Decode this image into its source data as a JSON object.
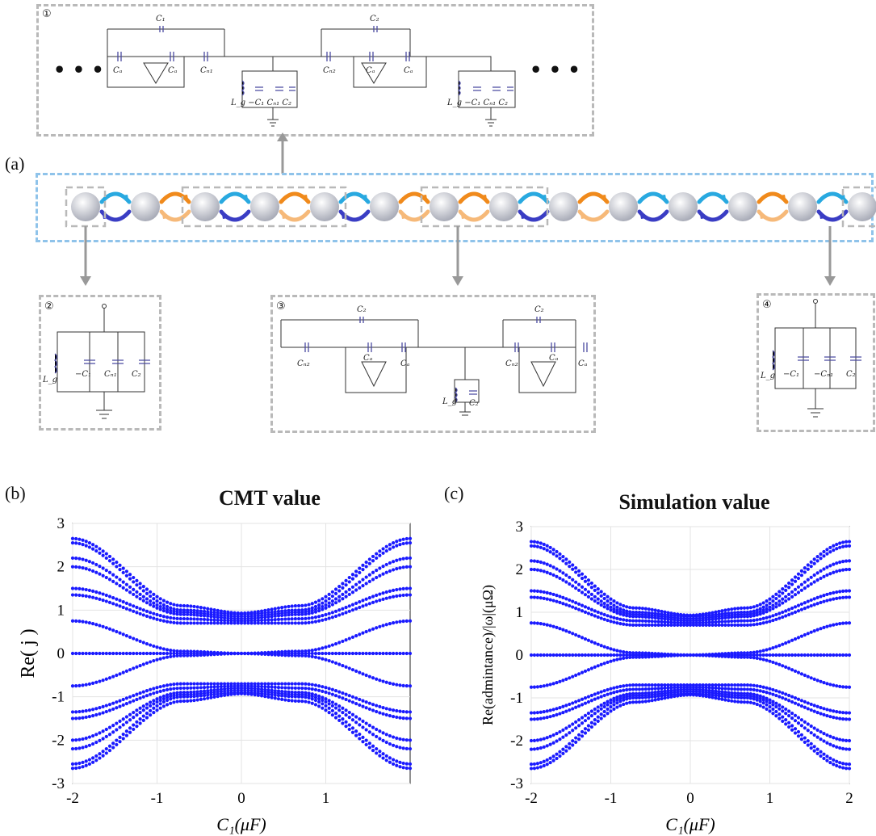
{
  "figure": {
    "panel_a_label": "(a)",
    "panel_b_label": "(b)",
    "panel_c_label": "(c)",
    "insets": {
      "inset1": {
        "number": "①",
        "ellipsis": "• • •"
      },
      "inset2": {
        "number": "②"
      },
      "inset3": {
        "number": "③"
      },
      "inset4": {
        "number": "④"
      }
    },
    "components": {
      "C1": "C₁",
      "C2": "C₂",
      "Ca": "Cₐ",
      "Cn1": "Cₙ₁",
      "Cn2": "Cₙ₂",
      "negC1": "−C₁",
      "negCn1": "−Cₙ₁",
      "Lg": "L_g"
    },
    "chain": {
      "node_color": "#d9dbe2",
      "hop_colors": {
        "cyan": "#29a9e0",
        "blue": "#3a3dc4",
        "orange": "#f08a1c",
        "peach": "#f6b979"
      },
      "box_color": "#8fc3ea"
    }
  },
  "chart_data": [
    {
      "type": "scatter",
      "title": "CMT value",
      "xlabel": "C₁(μF)",
      "ylabel": "Re( j )",
      "xlim": [
        -2,
        2
      ],
      "ylim": [
        -3,
        3
      ],
      "xticks": [
        "-2",
        "-1",
        "0",
        "1"
      ],
      "xtick_values": [
        -2,
        -1,
        0,
        1
      ],
      "yticks": [
        "3",
        "2",
        "1",
        "0",
        "-1",
        "-2",
        "-3"
      ],
      "ytick_values": [
        3,
        2,
        1,
        0,
        -1,
        -2,
        -3
      ],
      "grid": true,
      "marker_color": "#1a1aff",
      "bands": [
        {
          "x": [
            -2,
            -0.7,
            0,
            0.7,
            2
          ],
          "y": [
            2.65,
            1.1,
            0.93,
            1.1,
            2.65
          ]
        },
        {
          "x": [
            -2,
            -0.7,
            0,
            0.7,
            2
          ],
          "y": [
            2.55,
            1.0,
            0.9,
            1.0,
            2.55
          ]
        },
        {
          "x": [
            -2,
            -0.7,
            0,
            0.7,
            2
          ],
          "y": [
            2.2,
            0.95,
            0.85,
            0.95,
            2.2
          ]
        },
        {
          "x": [
            -2,
            -0.7,
            0,
            0.7,
            2
          ],
          "y": [
            2.0,
            0.9,
            0.8,
            0.9,
            2.0
          ]
        },
        {
          "x": [
            -2,
            -0.7,
            0,
            0.7,
            2
          ],
          "y": [
            1.5,
            0.8,
            0.75,
            0.8,
            1.5
          ]
        },
        {
          "x": [
            -2,
            -0.7,
            0,
            0.7,
            2
          ],
          "y": [
            1.35,
            0.7,
            0.7,
            0.7,
            1.35
          ]
        },
        {
          "x": [
            -2,
            -0.7,
            0,
            0.7,
            2
          ],
          "y": [
            0.75,
            0.05,
            0.0,
            0.05,
            0.75
          ]
        },
        {
          "x": [
            -2,
            2
          ],
          "y": [
            0,
            0
          ]
        },
        {
          "x": [
            -2,
            -0.7,
            0,
            0.7,
            2
          ],
          "y": [
            -0.75,
            -0.05,
            0.0,
            -0.05,
            -0.75
          ]
        },
        {
          "x": [
            -2,
            -0.7,
            0,
            0.7,
            2
          ],
          "y": [
            -1.35,
            -0.7,
            -0.7,
            -0.7,
            -1.35
          ]
        },
        {
          "x": [
            -2,
            -0.7,
            0,
            0.7,
            2
          ],
          "y": [
            -1.5,
            -0.8,
            -0.75,
            -0.8,
            -1.5
          ]
        },
        {
          "x": [
            -2,
            -0.7,
            0,
            0.7,
            2
          ],
          "y": [
            -2.0,
            -0.9,
            -0.8,
            -0.9,
            -2.0
          ]
        },
        {
          "x": [
            -2,
            -0.7,
            0,
            0.7,
            2
          ],
          "y": [
            -2.2,
            -0.95,
            -0.85,
            -0.95,
            -2.2
          ]
        },
        {
          "x": [
            -2,
            -0.7,
            0,
            0.7,
            2
          ],
          "y": [
            -2.55,
            -1.0,
            -0.9,
            -1.0,
            -2.55
          ]
        },
        {
          "x": [
            -2,
            -0.7,
            0,
            0.7,
            2
          ],
          "y": [
            -2.65,
            -1.1,
            -0.93,
            -1.1,
            -2.65
          ]
        }
      ]
    },
    {
      "type": "scatter",
      "title": "Simulation value",
      "xlabel": "C₁(μF)",
      "ylabel": "Re(admintance)/|ω|(μΩ)",
      "xlim": [
        -2,
        2
      ],
      "ylim": [
        -3,
        3
      ],
      "xticks": [
        "-2",
        "-1",
        "0",
        "1",
        "2"
      ],
      "xtick_values": [
        -2,
        -1,
        0,
        1,
        2
      ],
      "yticks": [
        "3",
        "2",
        "1",
        "0",
        "-1",
        "-2",
        "-3"
      ],
      "ytick_values": [
        3,
        2,
        1,
        0,
        -1,
        -2,
        -3
      ],
      "grid": true,
      "marker_color": "#1a1aff"
    }
  ]
}
